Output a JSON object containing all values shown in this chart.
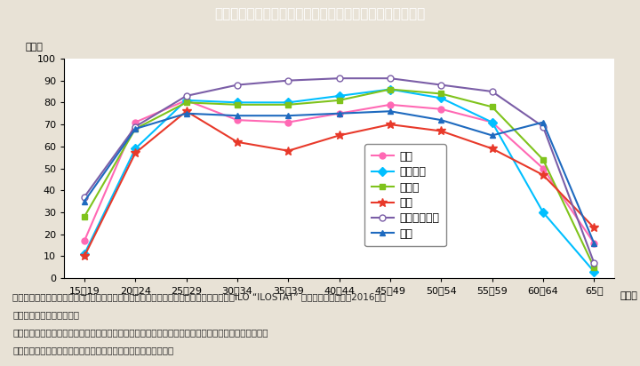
{
  "title": "Ｉ－２－４図　主要国における女性の年齢階級別労働力率",
  "title_bg_color": "#00bcd4",
  "bg_color": "#e8e2d6",
  "plot_bg_color": "#ffffff",
  "ylabel": "（％）",
  "xlabel": "（歳）",
  "ylim": [
    0,
    100
  ],
  "yticks": [
    0,
    10,
    20,
    30,
    40,
    50,
    60,
    70,
    80,
    90,
    100
  ],
  "categories": [
    "15～19",
    "20～24",
    "25～29",
    "30～34",
    "35～39",
    "40～44",
    "45～49",
    "50～54",
    "55～59",
    "60～64",
    "65～"
  ],
  "series": [
    {
      "name": "日本",
      "color": "#ff69b4",
      "marker": "o",
      "marker_fill": "#ff69b4",
      "linestyle": "-",
      "values": [
        17,
        71,
        81,
        72,
        71,
        75,
        79,
        77,
        71,
        50,
        16
      ]
    },
    {
      "name": "フランス",
      "color": "#00bfff",
      "marker": "D",
      "marker_fill": "#00bfff",
      "linestyle": "-",
      "values": [
        11,
        59,
        81,
        80,
        80,
        83,
        86,
        82,
        71,
        30,
        3
      ]
    },
    {
      "name": "ドイツ",
      "color": "#7fc31c",
      "marker": "s",
      "marker_fill": "#7fc31c",
      "linestyle": "-",
      "values": [
        28,
        68,
        80,
        79,
        79,
        81,
        86,
        84,
        78,
        54,
        5
      ]
    },
    {
      "name": "韓国",
      "color": "#e8392a",
      "marker": "*",
      "marker_fill": "#e8392a",
      "linestyle": "-",
      "values": [
        10,
        57,
        76,
        62,
        58,
        65,
        70,
        67,
        59,
        47,
        23
      ]
    },
    {
      "name": "スウェーデン",
      "color": "#7b5ea7",
      "marker": "o",
      "marker_fill": "#ffffff",
      "linestyle": "-",
      "values": [
        37,
        69,
        83,
        88,
        90,
        91,
        91,
        88,
        85,
        69,
        7
      ]
    },
    {
      "name": "米国",
      "color": "#1e6abf",
      "marker": "^",
      "marker_fill": "#1e6abf",
      "linestyle": "-",
      "values": [
        35,
        68,
        75,
        74,
        74,
        75,
        76,
        72,
        65,
        71,
        16
      ]
    }
  ],
  "notes": [
    "（備考）１．　日本は総務省「労働力調査（基本集計）」（平成２８年），その他の国はILO “ILOSTAT” より作成。いずれも2016（平",
    "　　　　　成２８）年値。",
    "　　　　２．　労働力率は，「労働力人口（就業者＋完全失業者）」／「１５歳以上人口」＋１００。",
    "　　　　３．　米国の１５～１９歳の値は，１６～１９歳の値。"
  ],
  "title_fontsize": 11,
  "tick_fontsize": 8,
  "note_fontsize": 7.5,
  "legend_fontsize": 9
}
